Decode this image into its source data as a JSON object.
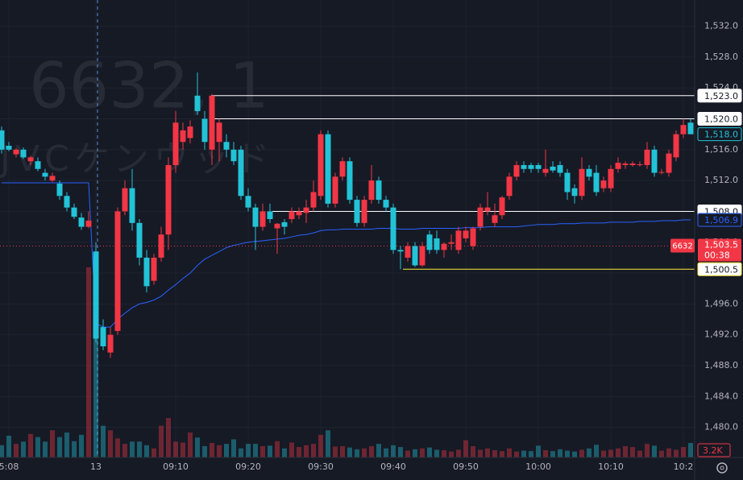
{
  "chart_data": {
    "type": "candlestick",
    "watermark": "6632, 1",
    "watermark_sub": "JVCケンウッド",
    "up_color": "#f23645",
    "down_color": "#22c3d6",
    "ylim": [
      1476.1,
      1535.4
    ],
    "yticks": [
      {
        "value": 1480,
        "label": "1,480.0"
      },
      {
        "value": 1484,
        "label": "1,484.0"
      },
      {
        "value": 1488,
        "label": "1,488.0"
      },
      {
        "value": 1492,
        "label": "1,492.0"
      },
      {
        "value": 1496,
        "label": "1,496.0"
      },
      {
        "value": 1500,
        "label": "1,500.0"
      },
      {
        "value": 1504,
        "label": "1,504.0"
      },
      {
        "value": 1508,
        "label": "1,508.0"
      },
      {
        "value": 1512,
        "label": "1,512.0"
      },
      {
        "value": 1516,
        "label": "1,516.0"
      },
      {
        "value": 1520,
        "label": "1,520.0"
      },
      {
        "value": 1524,
        "label": "1,524.0"
      },
      {
        "value": 1528,
        "label": "1,528.0"
      },
      {
        "value": 1532,
        "label": "1,532.0"
      }
    ],
    "grid": true,
    "categories": [
      null,
      "5:08",
      null,
      null,
      null,
      null,
      null,
      null,
      null,
      null,
      null,
      null,
      null,
      "13",
      null,
      null,
      null,
      null,
      null,
      null,
      null,
      null,
      null,
      null,
      "09:10",
      null,
      null,
      null,
      null,
      null,
      null,
      null,
      null,
      null,
      "09:20",
      null,
      null,
      null,
      null,
      null,
      null,
      null,
      null,
      null,
      "09:30",
      null,
      null,
      null,
      null,
      null,
      null,
      null,
      null,
      null,
      "09:40",
      null,
      null,
      null,
      null,
      null,
      null,
      null,
      null,
      null,
      "09:50",
      null,
      null,
      null,
      null,
      null,
      null,
      null,
      null,
      null,
      "10:00",
      null,
      null,
      null,
      null,
      null,
      null,
      null,
      null,
      null,
      "10:10",
      null,
      null,
      null,
      null,
      null,
      null,
      null,
      null,
      null,
      "10:2",
      null
    ],
    "ohlc": [
      [
        1518.5,
        1519,
        1515.5,
        1516
      ],
      [
        1516.5,
        1517,
        1515.8,
        1516
      ],
      [
        1515.4,
        1516.2,
        1515,
        1516
      ],
      [
        1516,
        1516.3,
        1514.8,
        1515
      ],
      [
        1514.5,
        1515.2,
        1514,
        1515
      ],
      [
        1514.5,
        1515,
        1513.2,
        1513.5
      ],
      [
        1513,
        1513.5,
        1512,
        1512.5
      ],
      [
        1512,
        1513,
        1511.8,
        1512.6
      ],
      [
        1511.6,
        1512,
        1509.5,
        1510
      ],
      [
        1510,
        1510.5,
        1508,
        1508.5
      ],
      [
        1508.5,
        1509,
        1507,
        1507.3
      ],
      [
        1507.2,
        1507.8,
        1505.6,
        1506
      ],
      [
        1506,
        1508,
        1505.8,
        1506.8
      ],
      [
        1502.8,
        1504,
        1491,
        1491.5
      ],
      [
        1493,
        1494,
        1490,
        1490.5
      ],
      [
        1489.7,
        1493,
        1489,
        1492
      ],
      [
        1492.5,
        1508.5,
        1492,
        1508
      ],
      [
        1508,
        1512,
        1507.5,
        1511
      ],
      [
        1511,
        1513.5,
        1505.5,
        1506.5
      ],
      [
        1506.5,
        1507,
        1501,
        1502
      ],
      [
        1502,
        1503,
        1497.5,
        1498.3
      ],
      [
        1499,
        1502.5,
        1498.5,
        1502
      ],
      [
        1502,
        1506,
        1501.5,
        1505
      ],
      [
        1505,
        1515,
        1503,
        1514
      ],
      [
        1514,
        1521,
        1513,
        1519.5
      ],
      [
        1517,
        1519.5,
        1516,
        1518.5
      ],
      [
        1517.5,
        1519.8,
        1516.8,
        1519
      ],
      [
        1523,
        1526,
        1520.5,
        1521
      ],
      [
        1520,
        1521,
        1516,
        1517
      ],
      [
        1516,
        1523.2,
        1514,
        1523
      ],
      [
        1517,
        1520,
        1514.5,
        1519.5
      ],
      [
        1517,
        1518,
        1515,
        1516
      ],
      [
        1516,
        1517,
        1514,
        1514.5
      ],
      [
        1516,
        1516.5,
        1509.5,
        1510
      ],
      [
        1510,
        1511,
        1508,
        1508.5
      ],
      [
        1508.5,
        1509,
        1503,
        1506
      ],
      [
        1506,
        1509,
        1505.5,
        1508
      ],
      [
        1508,
        1509,
        1506.5,
        1507
      ],
      [
        1505.8,
        1506.5,
        1502.5,
        1506.4
      ],
      [
        1506.6,
        1507,
        1505,
        1506
      ],
      [
        1507,
        1508.5,
        1506.5,
        1508
      ],
      [
        1507.5,
        1508.5,
        1507,
        1508
      ],
      [
        1507.8,
        1509.5,
        1506.5,
        1508.5
      ],
      [
        1508.5,
        1512,
        1508,
        1510.5
      ],
      [
        1510,
        1518.5,
        1509.5,
        1518
      ],
      [
        1518,
        1518.5,
        1508.5,
        1509
      ],
      [
        1509,
        1513,
        1508.5,
        1512.5
      ],
      [
        1512.5,
        1515,
        1512,
        1514.5
      ],
      [
        1514.5,
        1515,
        1509,
        1509.5
      ],
      [
        1509.5,
        1510,
        1506,
        1506.5
      ],
      [
        1506.5,
        1510,
        1506,
        1509.5
      ],
      [
        1509.5,
        1514,
        1509,
        1512
      ],
      [
        1512,
        1512.5,
        1509,
        1509.5
      ],
      [
        1509.5,
        1510,
        1508,
        1508.5
      ],
      [
        1508.5,
        1509,
        1502.5,
        1503
      ],
      [
        1503,
        1503.5,
        1500.5,
        1502.8
      ],
      [
        1502,
        1504,
        1501.5,
        1503.5
      ],
      [
        1503.5,
        1504,
        1500.8,
        1501
      ],
      [
        1501,
        1504,
        1500.8,
        1503.5
      ],
      [
        1505,
        1505.5,
        1502.5,
        1503
      ],
      [
        1504.5,
        1505.5,
        1502.5,
        1503
      ],
      [
        1503,
        1504,
        1502,
        1503.8
      ],
      [
        1503.8,
        1505,
        1503,
        1504
      ],
      [
        1503,
        1506,
        1502.5,
        1505.5
      ],
      [
        1504.5,
        1506,
        1504,
        1505.5
      ],
      [
        1503.5,
        1506,
        1503,
        1505.8
      ],
      [
        1506,
        1509,
        1505.5,
        1508.5
      ],
      [
        1508,
        1510.5,
        1507.5,
        1508.5
      ],
      [
        1506.5,
        1509,
        1506,
        1507.5
      ],
      [
        1507.5,
        1510,
        1507,
        1509.8
      ],
      [
        1510,
        1513,
        1509.5,
        1512.5
      ],
      [
        1512.5,
        1514.5,
        1512,
        1514
      ],
      [
        1514,
        1514.5,
        1513,
        1513.5
      ],
      [
        1514,
        1514.3,
        1513,
        1513.5
      ],
      [
        1514,
        1514.3,
        1513,
        1513.5
      ],
      [
        1513,
        1516,
        1512.5,
        1513.5
      ],
      [
        1513.8,
        1514.5,
        1513,
        1513.3
      ],
      [
        1514,
        1514.5,
        1512.5,
        1513
      ],
      [
        1513,
        1513.5,
        1509.5,
        1510.5
      ],
      [
        1511,
        1511.5,
        1509,
        1510
      ],
      [
        1510,
        1515,
        1509.5,
        1513.5
      ],
      [
        1513.5,
        1514,
        1512,
        1512.5
      ],
      [
        1513,
        1514,
        1510,
        1510.5
      ],
      [
        1511,
        1512.5,
        1510.5,
        1512
      ],
      [
        1511,
        1514,
        1510.5,
        1513.5
      ],
      [
        1513.5,
        1515,
        1513,
        1514.3
      ],
      [
        1514,
        1514.5,
        1513.5,
        1514.2
      ],
      [
        1514,
        1514.5,
        1513.8,
        1514.2
      ],
      [
        1514,
        1514.5,
        1513.8,
        1514.1
      ],
      [
        1514,
        1517,
        1513.5,
        1516
      ],
      [
        1516,
        1516.5,
        1512.5,
        1513
      ],
      [
        1513,
        1513.5,
        1512.8,
        1513.1
      ],
      [
        1513,
        1516,
        1512.5,
        1515.5
      ],
      [
        1515,
        1518.5,
        1514.5,
        1518
      ],
      [
        1518,
        1520,
        1517.5,
        1519.2
      ],
      [
        1519.5,
        1520,
        1518,
        1518
      ]
    ],
    "volume": {
      "vlim": [
        0,
        45000
      ],
      "values": [
        2700,
        4800,
        3000,
        3500,
        5200,
        4500,
        3500,
        6000,
        4500,
        5500,
        3600,
        5000,
        42000,
        30800,
        7000,
        6000,
        4200,
        3000,
        3500,
        3500,
        2700,
        2000,
        7000,
        8700,
        3500,
        3300,
        5500,
        4400,
        2500,
        3200,
        2700,
        3000,
        4000,
        2000,
        3000,
        3000,
        2500,
        2600,
        3600,
        2000,
        3300,
        2300,
        2700,
        3000,
        5000,
        6000,
        2400,
        2500,
        2200,
        1800,
        2000,
        2500,
        3000,
        2000,
        2700,
        2300,
        1500,
        1800,
        2000,
        2200,
        1700,
        1600,
        1300,
        1700,
        3800,
        2500,
        1700,
        2000,
        1600,
        1400,
        2000,
        1300,
        1500,
        1400,
        2600,
        1600,
        1400,
        1800,
        1500,
        1300,
        1700,
        2000,
        2800,
        1500,
        1700,
        2000,
        2500,
        2300,
        1500,
        3000,
        2600,
        1500,
        2000,
        1700,
        2300,
        3200
      ],
      "last": {
        "value": 3200,
        "label": "3.2K"
      }
    },
    "vwap": {
      "color": "#2962ff",
      "values": [
        1511.7,
        1511.7,
        1511.7,
        1511.7,
        1511.7,
        1511.7,
        1511.7,
        1511.7,
        1511.7,
        1511.7,
        1511.7,
        1511.7,
        1511.7,
        1493.5,
        1493,
        1493,
        1494,
        1494.8,
        1495.5,
        1496,
        1496.2,
        1496.5,
        1497,
        1497.8,
        1498.5,
        1499.3,
        1500,
        1501,
        1501.8,
        1502.3,
        1502.8,
        1503.3,
        1503.6,
        1503.8,
        1504,
        1504.1,
        1504.2,
        1504.3,
        1504.4,
        1504.5,
        1504.7,
        1504.9,
        1505,
        1505.2,
        1505.5,
        1505.6,
        1505.6,
        1505.7,
        1505.7,
        1505.7,
        1505.7,
        1505.7,
        1505.8,
        1505.8,
        1505.8,
        1505.7,
        1505.7,
        1505.7,
        1505.8,
        1505.8,
        1505.8,
        1505.8,
        1505.8,
        1505.8,
        1505.9,
        1505.9,
        1505.9,
        1506,
        1506,
        1506,
        1506,
        1506,
        1506.1,
        1506.2,
        1506.3,
        1506.3,
        1506.3,
        1506.4,
        1506.4,
        1506.4,
        1506.5,
        1506.5,
        1506.5,
        1506.5,
        1506.6,
        1506.6,
        1506.6,
        1506.6,
        1506.7,
        1506.7,
        1506.7,
        1506.8,
        1506.8,
        1506.8,
        1506.9,
        1506.9
      ],
      "last": {
        "value": 1506.9,
        "label": "1,506.9"
      }
    },
    "levels": [
      {
        "value": 1523,
        "label": "1,523.0",
        "color": "#ffffff"
      },
      {
        "value": 1520,
        "label": "1,520.0",
        "color": "#ffffff"
      },
      {
        "value": 1508,
        "label": "1,508.0",
        "color": "#ffffff"
      },
      {
        "value": 1500.5,
        "label": "1,500.5",
        "color": "#ffeb3b"
      }
    ],
    "last_price": {
      "value": 1518,
      "label": "1,518.0"
    },
    "price_line": {
      "value": 1503.5,
      "label": "1,503.5",
      "symbol": "6632",
      "countdown": "00:38",
      "color": "#f23645"
    }
  }
}
